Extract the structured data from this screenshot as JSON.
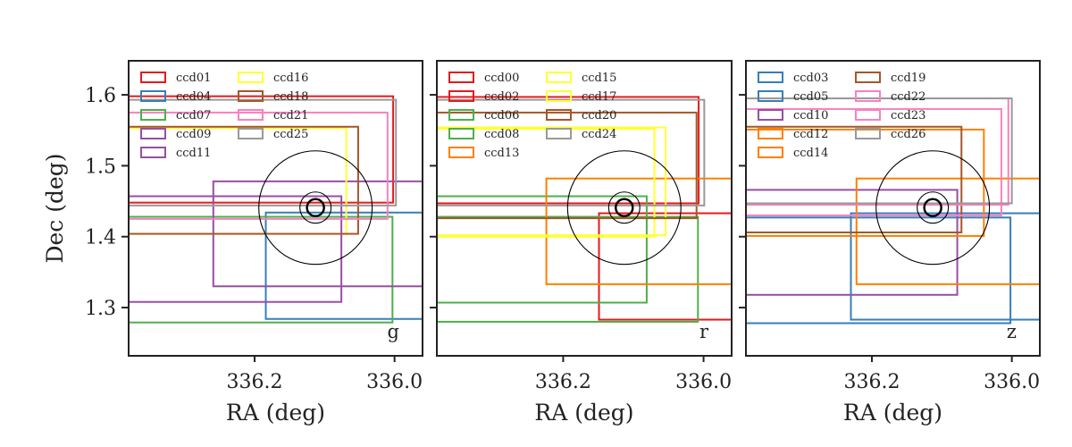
{
  "chart_data": [
    {
      "type": "footprint",
      "band": "g",
      "xlabel": "RA (deg)",
      "ylabel": "Dec (deg)",
      "xlim": [
        336.38,
        335.96
      ],
      "ylim": [
        1.232,
        1.648
      ],
      "xticks": [
        {
          "value": 336.2,
          "label": "336.2"
        },
        {
          "value": 336.0,
          "label": "336.0"
        }
      ],
      "yticks": [
        {
          "value": 1.6,
          "label": "1.6"
        },
        {
          "value": 1.5,
          "label": "1.5"
        },
        {
          "value": 1.4,
          "label": "1.4"
        },
        {
          "value": 1.3,
          "label": "1.3"
        }
      ],
      "circles": {
        "center_ra": 336.113,
        "center_dec": 1.441,
        "radii_deg": [
          0.012,
          0.022,
          0.08
        ]
      },
      "ccds": [
        {
          "name": "ccd01",
          "color": "#e41a1c",
          "ra": [
            336.38,
            336.002
          ],
          "dec": [
            1.448,
            1.598
          ]
        },
        {
          "name": "ccd04",
          "color": "#377eb8",
          "ra": [
            336.184,
            335.96
          ],
          "dec": [
            1.284,
            1.434
          ]
        },
        {
          "name": "ccd07",
          "color": "#4daf4a",
          "ra": [
            336.38,
            336.003
          ],
          "dec": [
            1.279,
            1.428
          ]
        },
        {
          "name": "ccd09",
          "color": "#984ea3",
          "ra": [
            336.38,
            336.076
          ],
          "dec": [
            1.308,
            1.457
          ]
        },
        {
          "name": "ccd11",
          "color": "#984ea3",
          "ra": [
            336.259,
            335.956
          ],
          "dec": [
            1.33,
            1.478
          ]
        },
        {
          "name": "ccd16",
          "color": "#ffff33",
          "ra": [
            336.38,
            336.069
          ],
          "dec": [
            1.404,
            1.553
          ]
        },
        {
          "name": "ccd18",
          "color": "#a65628",
          "ra": [
            336.38,
            336.052
          ],
          "dec": [
            1.404,
            1.555
          ]
        },
        {
          "name": "ccd21",
          "color": "#f781bf",
          "ra": [
            336.38,
            336.01
          ],
          "dec": [
            1.425,
            1.575
          ]
        },
        {
          "name": "ccd25",
          "color": "#999999",
          "ra": [
            336.38,
            335.998
          ],
          "dec": [
            1.444,
            1.593
          ]
        }
      ]
    },
    {
      "type": "footprint",
      "band": "r",
      "xlabel": "RA (deg)",
      "ylabel": "",
      "xlim": [
        336.38,
        335.96
      ],
      "ylim": [
        1.232,
        1.648
      ],
      "xticks": [
        {
          "value": 336.2,
          "label": "336.2"
        },
        {
          "value": 336.0,
          "label": "336.0"
        }
      ],
      "yticks": [],
      "circles": {
        "center_ra": 336.113,
        "center_dec": 1.441,
        "radii_deg": [
          0.012,
          0.022,
          0.08
        ]
      },
      "ccds": [
        {
          "name": "ccd00",
          "color": "#e41a1c",
          "ra": [
            336.149,
            335.96
          ],
          "dec": [
            1.283,
            1.433
          ]
        },
        {
          "name": "ccd02",
          "color": "#e41a1c",
          "ra": [
            336.38,
            336.007
          ],
          "dec": [
            1.447,
            1.597
          ]
        },
        {
          "name": "ccd06",
          "color": "#4daf4a",
          "ra": [
            336.38,
            336.081
          ],
          "dec": [
            1.307,
            1.457
          ]
        },
        {
          "name": "ccd08",
          "color": "#4daf4a",
          "ra": [
            336.38,
            336.008
          ],
          "dec": [
            1.28,
            1.428
          ]
        },
        {
          "name": "ccd13",
          "color": "#ff7f00",
          "ra": [
            336.224,
            335.953
          ],
          "dec": [
            1.333,
            1.482
          ]
        },
        {
          "name": "ccd15",
          "color": "#ffff33",
          "ra": [
            336.38,
            336.07
          ],
          "dec": [
            1.4,
            1.552
          ]
        },
        {
          "name": "ccd17",
          "color": "#ffff33",
          "ra": [
            336.38,
            336.054
          ],
          "dec": [
            1.402,
            1.554
          ]
        },
        {
          "name": "ccd20",
          "color": "#a65628",
          "ra": [
            336.38,
            336.01
          ],
          "dec": [
            1.426,
            1.575
          ]
        },
        {
          "name": "ccd24",
          "color": "#999999",
          "ra": [
            336.38,
            335.999
          ],
          "dec": [
            1.444,
            1.593
          ]
        }
      ]
    },
    {
      "type": "footprint",
      "band": "z",
      "xlabel": "RA (deg)",
      "ylabel": "",
      "xlim": [
        336.38,
        335.96
      ],
      "ylim": [
        1.232,
        1.648
      ],
      "xticks": [
        {
          "value": 336.2,
          "label": "336.2"
        },
        {
          "value": 336.0,
          "label": "336.0"
        }
      ],
      "yticks": [],
      "circles": {
        "center_ra": 336.113,
        "center_dec": 1.441,
        "radii_deg": [
          0.012,
          0.022,
          0.08
        ]
      },
      "ccds": [
        {
          "name": "ccd03",
          "color": "#377eb8",
          "ra": [
            336.38,
            336.002
          ],
          "dec": [
            1.278,
            1.427
          ]
        },
        {
          "name": "ccd05",
          "color": "#377eb8",
          "ra": [
            336.23,
            335.96
          ],
          "dec": [
            1.283,
            1.433
          ]
        },
        {
          "name": "ccd10",
          "color": "#984ea3",
          "ra": [
            336.38,
            336.078
          ],
          "dec": [
            1.318,
            1.466
          ]
        },
        {
          "name": "ccd12",
          "color": "#ff7f00",
          "ra": [
            336.38,
            336.04
          ],
          "dec": [
            1.401,
            1.551
          ]
        },
        {
          "name": "ccd14",
          "color": "#ff7f00",
          "ra": [
            336.222,
            335.952
          ],
          "dec": [
            1.333,
            1.482
          ]
        },
        {
          "name": "ccd19",
          "color": "#a65628",
          "ra": [
            336.38,
            336.072
          ],
          "dec": [
            1.406,
            1.555
          ]
        },
        {
          "name": "ccd22",
          "color": "#f781bf",
          "ra": [
            336.38,
            336.005
          ],
          "dec": [
            1.445,
            1.595
          ]
        },
        {
          "name": "ccd23",
          "color": "#f781bf",
          "ra": [
            336.38,
            336.015
          ],
          "dec": [
            1.43,
            1.58
          ]
        },
        {
          "name": "ccd26",
          "color": "#999999",
          "ra": [
            336.38,
            336.0
          ],
          "dec": [
            1.447,
            1.595
          ]
        }
      ]
    }
  ]
}
